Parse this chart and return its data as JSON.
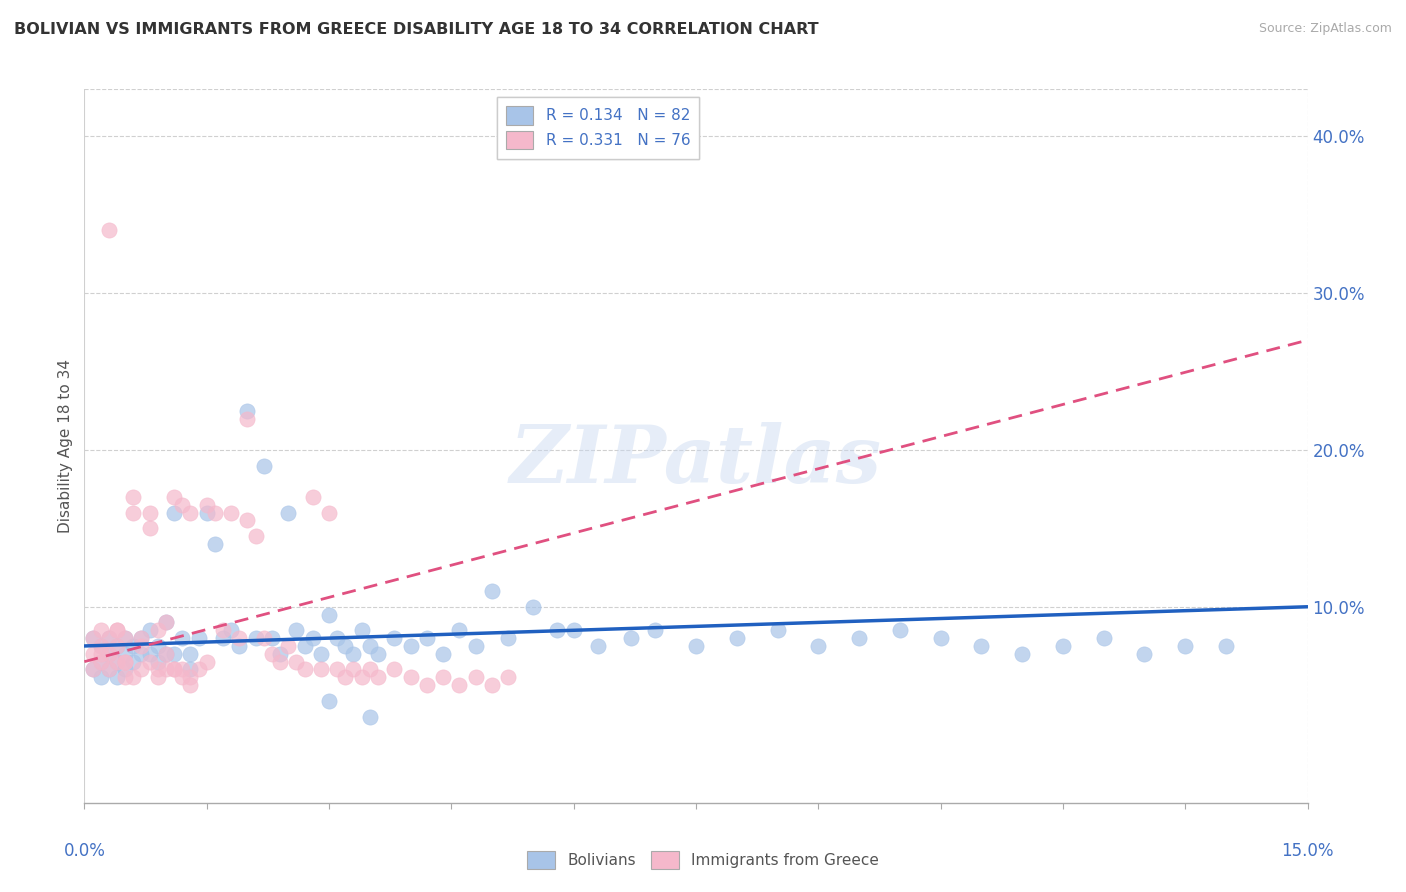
{
  "title": "BOLIVIAN VS IMMIGRANTS FROM GREECE DISABILITY AGE 18 TO 34 CORRELATION CHART",
  "source": "Source: ZipAtlas.com",
  "ylabel": "Disability Age 18 to 34",
  "y_ticks_right": [
    0.1,
    0.2,
    0.3,
    0.4
  ],
  "y_tick_labels": [
    "10.0%",
    "20.0%",
    "30.0%",
    "40.0%"
  ],
  "xlim": [
    0.0,
    0.15
  ],
  "ylim": [
    -0.025,
    0.43
  ],
  "blue_color": "#a8c4e8",
  "pink_color": "#f5b8cb",
  "blue_line_color": "#2060c0",
  "pink_line_color": "#e05080",
  "legend_label1": "Bolivians",
  "legend_label2": "Immigrants from Greece",
  "watermark": "ZIPatlas",
  "title_color": "#333333",
  "axis_label_color": "#4472c4",
  "grid_color": "#d0d0d0",
  "background_color": "#ffffff",
  "blue_trend_x0": 0.0,
  "blue_trend_y0": 0.075,
  "blue_trend_x1": 0.15,
  "blue_trend_y1": 0.1,
  "pink_trend_x0": 0.0,
  "pink_trend_y0": 0.065,
  "pink_trend_x1": 0.15,
  "pink_trend_y1": 0.27,
  "blue_scatter_x": [
    0.001,
    0.001,
    0.002,
    0.002,
    0.002,
    0.003,
    0.003,
    0.003,
    0.004,
    0.004,
    0.004,
    0.005,
    0.005,
    0.005,
    0.006,
    0.006,
    0.007,
    0.007,
    0.008,
    0.008,
    0.009,
    0.009,
    0.01,
    0.01,
    0.011,
    0.011,
    0.012,
    0.013,
    0.013,
    0.014,
    0.015,
    0.016,
    0.017,
    0.018,
    0.019,
    0.02,
    0.021,
    0.022,
    0.023,
    0.024,
    0.025,
    0.026,
    0.027,
    0.028,
    0.029,
    0.03,
    0.031,
    0.032,
    0.033,
    0.034,
    0.035,
    0.036,
    0.038,
    0.04,
    0.042,
    0.044,
    0.046,
    0.048,
    0.05,
    0.052,
    0.055,
    0.058,
    0.06,
    0.063,
    0.067,
    0.07,
    0.075,
    0.08,
    0.085,
    0.09,
    0.095,
    0.1,
    0.105,
    0.11,
    0.115,
    0.12,
    0.125,
    0.13,
    0.135,
    0.14,
    0.03,
    0.035
  ],
  "blue_scatter_y": [
    0.08,
    0.06,
    0.075,
    0.065,
    0.055,
    0.08,
    0.07,
    0.06,
    0.075,
    0.065,
    0.055,
    0.08,
    0.07,
    0.06,
    0.075,
    0.065,
    0.08,
    0.07,
    0.085,
    0.07,
    0.075,
    0.065,
    0.09,
    0.07,
    0.16,
    0.07,
    0.08,
    0.07,
    0.06,
    0.08,
    0.16,
    0.14,
    0.08,
    0.085,
    0.075,
    0.225,
    0.08,
    0.19,
    0.08,
    0.07,
    0.16,
    0.085,
    0.075,
    0.08,
    0.07,
    0.095,
    0.08,
    0.075,
    0.07,
    0.085,
    0.075,
    0.07,
    0.08,
    0.075,
    0.08,
    0.07,
    0.085,
    0.075,
    0.11,
    0.08,
    0.1,
    0.085,
    0.085,
    0.075,
    0.08,
    0.085,
    0.075,
    0.08,
    0.085,
    0.075,
    0.08,
    0.085,
    0.08,
    0.075,
    0.07,
    0.075,
    0.08,
    0.07,
    0.075,
    0.075,
    0.04,
    0.03
  ],
  "pink_scatter_x": [
    0.001,
    0.001,
    0.001,
    0.002,
    0.002,
    0.002,
    0.003,
    0.003,
    0.003,
    0.004,
    0.004,
    0.004,
    0.005,
    0.005,
    0.005,
    0.006,
    0.006,
    0.007,
    0.007,
    0.008,
    0.008,
    0.009,
    0.009,
    0.01,
    0.01,
    0.011,
    0.011,
    0.012,
    0.012,
    0.013,
    0.013,
    0.014,
    0.015,
    0.016,
    0.017,
    0.018,
    0.019,
    0.02,
    0.021,
    0.022,
    0.023,
    0.024,
    0.025,
    0.026,
    0.027,
    0.028,
    0.029,
    0.03,
    0.031,
    0.032,
    0.033,
    0.034,
    0.035,
    0.036,
    0.038,
    0.04,
    0.042,
    0.044,
    0.046,
    0.048,
    0.05,
    0.052,
    0.002,
    0.003,
    0.004,
    0.005,
    0.006,
    0.007,
    0.008,
    0.009,
    0.01,
    0.011,
    0.012,
    0.013,
    0.015,
    0.02
  ],
  "pink_scatter_y": [
    0.08,
    0.07,
    0.06,
    0.085,
    0.075,
    0.065,
    0.08,
    0.07,
    0.06,
    0.085,
    0.075,
    0.065,
    0.08,
    0.065,
    0.055,
    0.17,
    0.16,
    0.08,
    0.06,
    0.16,
    0.15,
    0.085,
    0.06,
    0.09,
    0.06,
    0.17,
    0.06,
    0.165,
    0.06,
    0.16,
    0.055,
    0.06,
    0.165,
    0.16,
    0.085,
    0.16,
    0.08,
    0.155,
    0.145,
    0.08,
    0.07,
    0.065,
    0.075,
    0.065,
    0.06,
    0.17,
    0.06,
    0.16,
    0.06,
    0.055,
    0.06,
    0.055,
    0.06,
    0.055,
    0.06,
    0.055,
    0.05,
    0.055,
    0.05,
    0.055,
    0.05,
    0.055,
    0.07,
    0.34,
    0.085,
    0.065,
    0.055,
    0.075,
    0.065,
    0.055,
    0.07,
    0.06,
    0.055,
    0.05,
    0.065,
    0.22
  ]
}
